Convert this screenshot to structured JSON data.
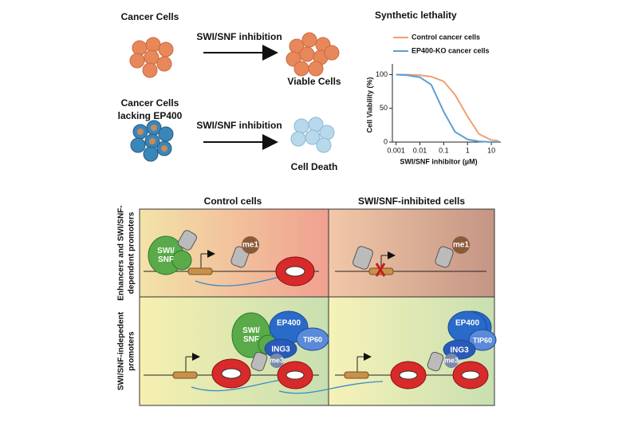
{
  "top": {
    "row1": {
      "label": "Cancer Cells",
      "arrow_label": "SWI/SNF inhibition",
      "result": "Viable Cells"
    },
    "row2": {
      "label_lines": [
        "Cancer Cells",
        "lacking EP400"
      ],
      "arrow_label": "SWI/SNF inhibition",
      "result": "Cell Death"
    }
  },
  "chart_data": {
    "type": "line",
    "title": "Synthetic lethality",
    "x_label": "SWI/SNF inhibitor (µM)",
    "y_label": "Cell Viability (%)",
    "x": [
      0.001,
      0.003,
      0.01,
      0.03,
      0.1,
      0.3,
      1,
      3,
      10,
      20
    ],
    "series": [
      {
        "name": "Control cancer cells",
        "color": "#f0a070",
        "values": [
          100,
          100,
          99,
          97,
          90,
          70,
          38,
          12,
          3,
          2
        ]
      },
      {
        "name": "EP400-KO cancer cells",
        "color": "#5a9fd4",
        "values": [
          100,
          99,
          96,
          85,
          45,
          15,
          4,
          1,
          0,
          0
        ]
      }
    ],
    "xlim": [
      0.0007,
      25
    ],
    "ylim": [
      0,
      110
    ],
    "log_x": true,
    "xticks": [
      0.001,
      0.01,
      0.1,
      1,
      10
    ],
    "yticks": [
      0,
      50,
      100
    ]
  },
  "bottom": {
    "columns": [
      "Control cells",
      "SWI/SNF-inhibited cells"
    ],
    "rows": [
      [
        "Enhancers and SWI/SNF-",
        "dependent promoters"
      ],
      [
        "SWI/SNF-indepedent",
        "promoters"
      ]
    ],
    "panel1": {
      "swisnf": "SWI/\nSNF",
      "mark": "me1"
    },
    "panel2": {
      "mark": "me1"
    },
    "panel3": {
      "swisnf": "SWI/\nSNF",
      "ep400": "EP400",
      "tip60": "TIP60",
      "ing3": "ING3",
      "mark": "me3"
    },
    "panel4": {
      "ep400": "EP400",
      "tip60": "TIP60",
      "ing3": "ING3",
      "mark": "me3"
    }
  }
}
